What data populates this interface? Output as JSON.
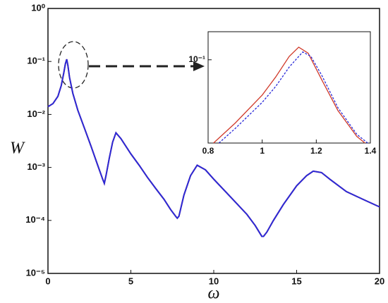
{
  "chart_data": [
    {
      "type": "line",
      "xlabel": "ω",
      "ylabel": "W",
      "yscale": "log",
      "x": [
        0,
        0.3,
        0.6,
        0.8,
        0.95,
        1.05,
        1.13,
        1.2,
        1.3,
        1.5,
        1.8,
        2.2,
        2.6,
        3.0,
        3.3,
        3.4,
        3.5,
        3.7,
        3.9,
        4.1,
        4.4,
        5,
        5.5,
        6,
        6.5,
        7,
        7.4,
        7.7,
        7.8,
        7.9,
        8.2,
        8.6,
        9,
        9.5,
        10,
        11,
        12,
        12.5,
        12.9,
        13,
        13.2,
        13.6,
        14.2,
        15,
        15.6,
        16,
        16.5,
        17,
        18,
        19,
        20
      ],
      "series": [
        {
          "color": "#d03a2a",
          "values": [
            0.014,
            0.016,
            0.022,
            0.035,
            0.06,
            0.09,
            0.11,
            0.085,
            0.05,
            0.025,
            0.012,
            0.0055,
            0.0025,
            0.0011,
            0.0006,
            0.0005,
            0.0007,
            0.0015,
            0.003,
            0.0045,
            0.0035,
            0.0018,
            0.0011,
            0.00065,
            0.0004,
            0.00025,
            0.00016,
            0.00012,
            0.00011,
            0.00012,
            0.0003,
            0.0007,
            0.0011,
            0.0009,
            0.0006,
            0.00028,
            0.00013,
            8e-05,
            5e-05,
            5e-05,
            6e-05,
            0.0001,
            0.0002,
            0.00045,
            0.0007,
            0.00085,
            0.0008,
            0.0006,
            0.00035,
            0.00025,
            0.00018
          ]
        },
        {
          "color": "#2a2ad8",
          "values": [
            0.014,
            0.016,
            0.022,
            0.035,
            0.06,
            0.09,
            0.11,
            0.085,
            0.05,
            0.025,
            0.012,
            0.0055,
            0.0025,
            0.0011,
            0.0006,
            0.0005,
            0.0007,
            0.0015,
            0.003,
            0.0045,
            0.0035,
            0.0018,
            0.0011,
            0.00065,
            0.0004,
            0.00025,
            0.00016,
            0.00012,
            0.00011,
            0.00012,
            0.0003,
            0.0007,
            0.0011,
            0.0009,
            0.0006,
            0.00028,
            0.00013,
            8e-05,
            5e-05,
            5e-05,
            6e-05,
            0.0001,
            0.0002,
            0.00045,
            0.0007,
            0.00085,
            0.0008,
            0.0006,
            0.00035,
            0.00025,
            0.00018
          ]
        }
      ],
      "xlim": [
        0,
        20
      ],
      "xticks": [
        0,
        5,
        10,
        15,
        20
      ],
      "ylim": [
        1e-05,
        1
      ],
      "yticks": [
        {
          "value": 1e-05,
          "label": "10⁻⁵"
        },
        {
          "value": 0.0001,
          "label": "10⁻⁴"
        },
        {
          "value": 0.001,
          "label": "10⁻³"
        },
        {
          "value": 0.01,
          "label": "10⁻²"
        },
        {
          "value": 0.1,
          "label": "10⁻¹"
        },
        {
          "value": 1,
          "label": "10⁰"
        }
      ]
    },
    {
      "type": "line",
      "yscale": "log",
      "series": [
        {
          "color": "#d03a2a",
          "dash": false,
          "x": [
            0.82,
            0.9,
            1.0,
            1.05,
            1.1,
            1.135,
            1.17,
            1.22,
            1.28,
            1.35,
            1.38
          ],
          "values": [
            0.03,
            0.04,
            0.06,
            0.078,
            0.105,
            0.12,
            0.11,
            0.075,
            0.048,
            0.033,
            0.03
          ]
        },
        {
          "color": "#2a2ad8",
          "dash": true,
          "x": [
            0.84,
            0.9,
            1.0,
            1.05,
            1.1,
            1.15,
            1.18,
            1.22,
            1.28,
            1.35,
            1.39
          ],
          "values": [
            0.03,
            0.037,
            0.054,
            0.068,
            0.09,
            0.112,
            0.105,
            0.08,
            0.05,
            0.034,
            0.03
          ]
        }
      ],
      "xlim": [
        0.8,
        1.4
      ],
      "xticks": [
        0.8,
        1,
        1.2,
        1.4
      ],
      "ylim": [
        0.03,
        0.15
      ],
      "yticks": [
        {
          "value": 0.1,
          "label": "10⁻¹"
        }
      ]
    }
  ]
}
